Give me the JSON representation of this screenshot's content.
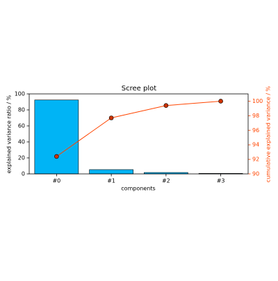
{
  "chart_data": {
    "type": "bar",
    "title": "Scree plot",
    "x_label": "components",
    "y_label": "explained variance ratio / %",
    "y2_label": "cumulative explained variance / %",
    "categories": [
      "#0",
      "#1",
      "#2",
      "#3"
    ],
    "series": [
      {
        "type": "bar",
        "color": "#00b4f5",
        "values": [
          92.4,
          5.3,
          1.7,
          0.6
        ]
      },
      {
        "type": "line",
        "axis": "y2",
        "color": "#ff4500",
        "marker_color": "#cc3300",
        "values": [
          92.4,
          97.7,
          99.4,
          100.0
        ]
      }
    ],
    "ylim": [
      0,
      100
    ],
    "yticks": [
      0,
      20,
      40,
      60,
      80,
      100
    ],
    "y2lim": [
      90,
      101
    ],
    "y2ticks": [
      90,
      92,
      94,
      96,
      98,
      100
    ],
    "y2_color": "#ff4500"
  }
}
